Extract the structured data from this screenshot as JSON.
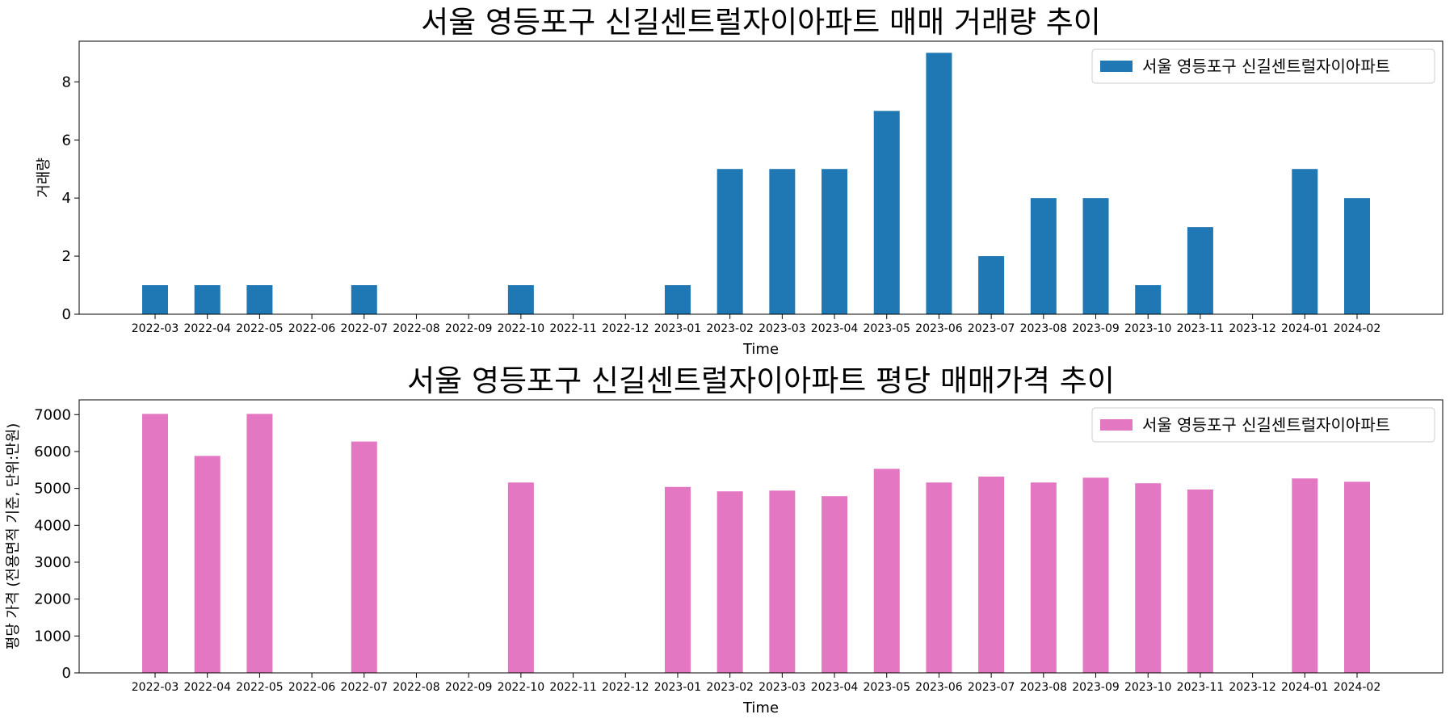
{
  "chart_data": [
    {
      "type": "bar",
      "title": "서울 영등포구 신길센트럴자이아파트 매매 거래량 추이",
      "xlabel": "Time",
      "ylabel": "거래량",
      "ylim": [
        0,
        9.4
      ],
      "yticks": [
        0,
        2,
        4,
        6,
        8
      ],
      "color": "#1f77b4",
      "legend": "top-right",
      "categories": [
        "2022-03",
        "2022-04",
        "2022-05",
        "2022-06",
        "2022-07",
        "2022-08",
        "2022-09",
        "2022-10",
        "2022-11",
        "2022-12",
        "2023-01",
        "2023-02",
        "2023-03",
        "2023-04",
        "2023-05",
        "2023-06",
        "2023-07",
        "2023-08",
        "2023-09",
        "2023-10",
        "2023-11",
        "2023-12",
        "2024-01",
        "2024-02"
      ],
      "series": [
        {
          "name": "서울 영등포구 신길센트럴자이아파트",
          "values": [
            1,
            1,
            1,
            0,
            1,
            0,
            0,
            1,
            0,
            0,
            1,
            5,
            5,
            5,
            7,
            9,
            2,
            4,
            4,
            1,
            3,
            0,
            5,
            4
          ]
        }
      ]
    },
    {
      "type": "bar",
      "title": "서울 영등포구 신길센트럴자이아파트 평당 매매가격 추이",
      "xlabel": "Time",
      "ylabel": "평당 가격 (전용면적 기준, 단위:만원)",
      "ylim": [
        0,
        7400
      ],
      "yticks": [
        0,
        1000,
        2000,
        3000,
        4000,
        5000,
        6000,
        7000
      ],
      "color": "#e377c2",
      "legend": "top-right",
      "categories": [
        "2022-03",
        "2022-04",
        "2022-05",
        "2022-06",
        "2022-07",
        "2022-08",
        "2022-09",
        "2022-10",
        "2022-11",
        "2022-12",
        "2023-01",
        "2023-02",
        "2023-03",
        "2023-04",
        "2023-05",
        "2023-06",
        "2023-07",
        "2023-08",
        "2023-09",
        "2023-10",
        "2023-11",
        "2023-12",
        "2024-01",
        "2024-02"
      ],
      "series": [
        {
          "name": "서울 영등포구 신길센트럴자이아파트",
          "values": [
            7020,
            5880,
            7020,
            0,
            6270,
            0,
            0,
            5160,
            0,
            0,
            5040,
            4920,
            4940,
            4790,
            5530,
            5160,
            5320,
            5160,
            5290,
            5140,
            4970,
            0,
            5270,
            5180
          ]
        }
      ]
    }
  ]
}
